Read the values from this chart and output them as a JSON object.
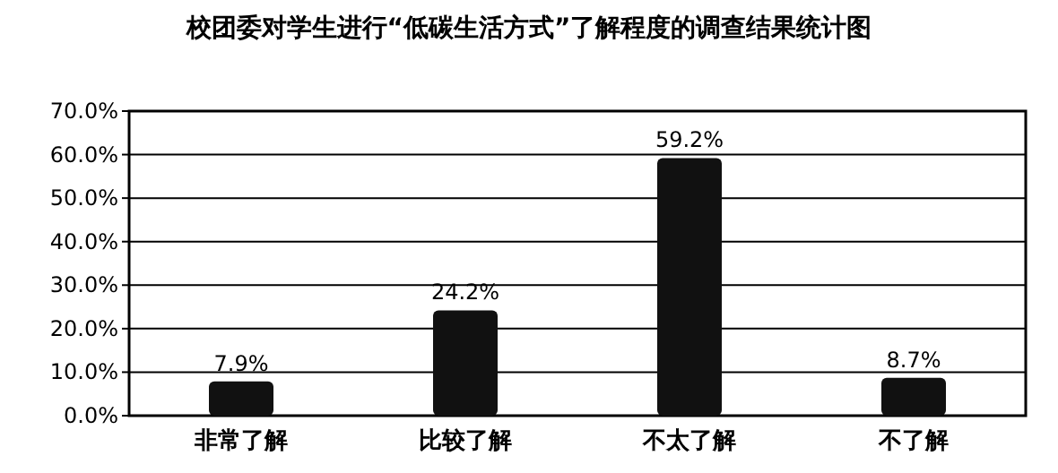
{
  "chart_data": {
    "type": "bar",
    "title": "校团委对学生进行“低碳生活方式”了解程度的调查结果统计图",
    "categories": [
      "非常了解",
      "比较了解",
      "不太了解",
      "不了解"
    ],
    "values": [
      7.9,
      24.2,
      59.2,
      8.7
    ],
    "value_labels": [
      "7.9%",
      "24.2%",
      "59.2%",
      "8.7%"
    ],
    "color": "#111111",
    "ylim": [
      0,
      70
    ],
    "yticks": [
      {
        "value": 0,
        "label": "0.0%"
      },
      {
        "value": 10,
        "label": "10.0%"
      },
      {
        "value": 20,
        "label": "20.0%"
      },
      {
        "value": 30,
        "label": "30.0%"
      },
      {
        "value": 40,
        "label": "40.0%"
      },
      {
        "value": 50,
        "label": "50.0%"
      },
      {
        "value": 60,
        "label": "60.0%"
      },
      {
        "value": 70,
        "label": "70.0%"
      }
    ],
    "grid": "y"
  }
}
